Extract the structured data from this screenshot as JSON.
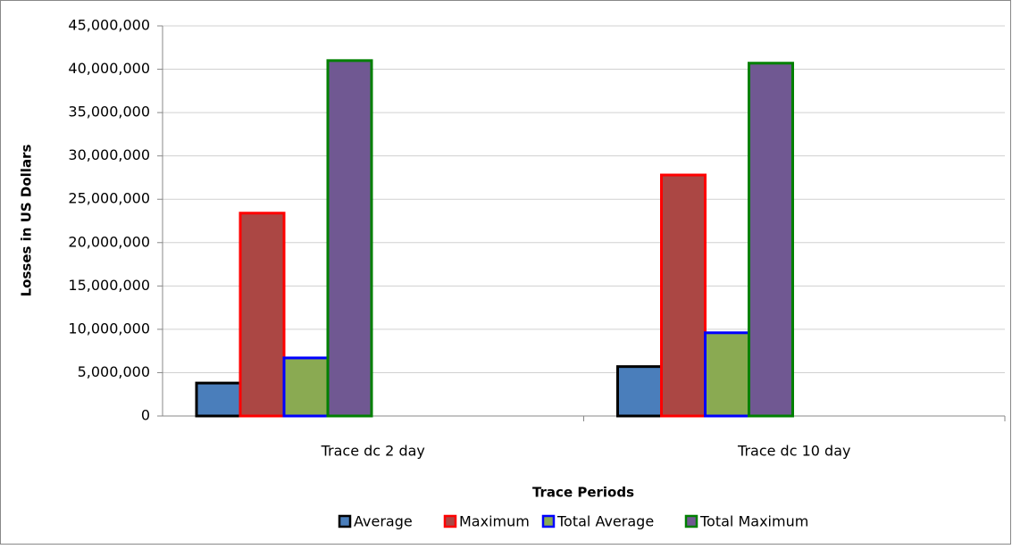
{
  "chart_data": {
    "type": "bar",
    "x_label": "Trace Periods",
    "y_label": "Losses in US Dollars",
    "categories": [
      "Trace dc 2 day",
      "Trace dc 10 day"
    ],
    "series": [
      {
        "name": "Average",
        "color": "#4a7ebb",
        "edgecolor": "#000000",
        "values": [
          3800000,
          5700000
        ]
      },
      {
        "name": "Maximum",
        "color": "#ab4744",
        "edgecolor": "#ff0000",
        "values": [
          23400000,
          27800000
        ]
      },
      {
        "name": "Total Average",
        "color": "#8aaa52",
        "edgecolor": "#0000ff",
        "values": [
          6700000,
          9600000
        ]
      },
      {
        "name": "Total Maximum",
        "color": "#705892",
        "edgecolor": "#008000",
        "values": [
          41000000,
          40700000
        ]
      }
    ],
    "ylim": [
      0,
      45000000
    ],
    "yticks": [
      {
        "value": 0,
        "label": "0"
      },
      {
        "value": 5000000,
        "label": "5,000,000"
      },
      {
        "value": 10000000,
        "label": "10,000,000"
      },
      {
        "value": 15000000,
        "label": "15,000,000"
      },
      {
        "value": 20000000,
        "label": "20,000,000"
      },
      {
        "value": 25000000,
        "label": "25,000,000"
      },
      {
        "value": 30000000,
        "label": "30,000,000"
      },
      {
        "value": 35000000,
        "label": "35,000,000"
      },
      {
        "value": 40000000,
        "label": "40,000,000"
      },
      {
        "value": 45000000,
        "label": "45,000,000"
      }
    ],
    "grid": true,
    "legend": "bottom"
  }
}
